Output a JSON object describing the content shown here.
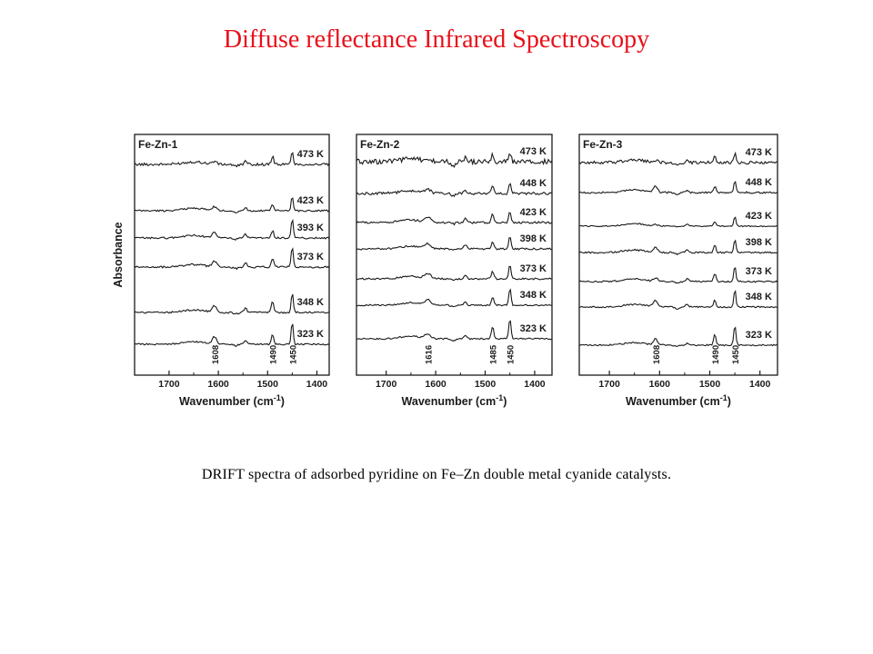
{
  "slide": {
    "title": "Diffuse reflectance Infrared Spectroscopy",
    "caption": "DRIFT spectra of adsorbed pyridine on Fe–Zn double metal cyanide catalysts."
  },
  "colors": {
    "title": "#e8101a",
    "line": "#1a1a1a"
  },
  "chart_data": [
    {
      "type": "line",
      "title": "Fe-Zn-1",
      "xlabel": "Wavenumber (cm-1)",
      "xlabel_main": "Wavenumber (cm",
      "xlabel_sup": "-1",
      "xlabel_end": ")",
      "ylabel": "Absorbance",
      "xlim": [
        1770,
        1375
      ],
      "x_inverted": true,
      "xticks": [
        1700,
        1600,
        1500,
        1400
      ],
      "grid": false,
      "peak_labels": [
        {
          "text": "1608",
          "x": 1608
        },
        {
          "text": "1490",
          "x": 1490
        },
        {
          "text": "1450",
          "x": 1450
        }
      ],
      "series": [
        {
          "name": "473 K",
          "features": [
            [
              1608,
              0.4,
              6
            ],
            [
              1490,
              1.1,
              3.5
            ],
            [
              1450,
              1.9,
              3
            ],
            [
              1545,
              0.4,
              4
            ]
          ],
          "noise": 0.18,
          "dip": -0.3
        },
        {
          "name": "423 K",
          "features": [
            [
              1608,
              0.5,
              6
            ],
            [
              1490,
              0.9,
              3.5
            ],
            [
              1450,
              2.0,
              3
            ],
            [
              1545,
              0.4,
              4
            ]
          ],
          "noise": 0.12,
          "dip": -0.2
        },
        {
          "name": "393 K",
          "features": [
            [
              1608,
              0.7,
              6
            ],
            [
              1490,
              1.0,
              3.5
            ],
            [
              1450,
              2.6,
              3
            ],
            [
              1545,
              0.5,
              4
            ]
          ],
          "noise": 0.12,
          "dip": -0.2
        },
        {
          "name": "373 K",
          "features": [
            [
              1608,
              0.8,
              6
            ],
            [
              1490,
              1.1,
              3.5
            ],
            [
              1450,
              2.8,
              3
            ],
            [
              1545,
              0.6,
              4
            ]
          ],
          "noise": 0.12,
          "dip": -0.2
        },
        {
          "name": "348 K",
          "features": [
            [
              1608,
              0.9,
              6
            ],
            [
              1490,
              1.5,
              3.5
            ],
            [
              1450,
              2.7,
              3
            ],
            [
              1545,
              0.6,
              4
            ]
          ],
          "noise": 0.12,
          "dip": -0.2
        },
        {
          "name": "323 K",
          "features": [
            [
              1608,
              1.0,
              6
            ],
            [
              1490,
              1.4,
              3.5
            ],
            [
              1450,
              3.0,
              3
            ],
            [
              1545,
              0.5,
              4
            ]
          ],
          "noise": 0.1,
          "dip": -0.2
        }
      ]
    },
    {
      "type": "line",
      "title": "Fe-Zn-2",
      "xlabel": "Wavenumber (cm-1)",
      "xlabel_main": "Wavenumber (cm",
      "xlabel_sup": "-1",
      "xlabel_end": ")",
      "ylabel": "",
      "xlim": [
        1760,
        1365
      ],
      "x_inverted": true,
      "xticks": [
        1700,
        1600,
        1500,
        1400
      ],
      "grid": false,
      "peak_labels": [
        {
          "text": "1616",
          "x": 1616
        },
        {
          "text": "1485",
          "x": 1485
        },
        {
          "text": "1450",
          "x": 1450
        }
      ],
      "series": [
        {
          "name": "473 K",
          "features": [
            [
              1616,
              0.3,
              8
            ],
            [
              1485,
              0.9,
              3.5
            ],
            [
              1450,
              1.4,
              3
            ],
            [
              1540,
              0.5,
              4
            ]
          ],
          "noise": 0.35,
          "dip": -0.7
        },
        {
          "name": "448 K",
          "features": [
            [
              1616,
              0.5,
              8
            ],
            [
              1485,
              1.0,
              3.5
            ],
            [
              1450,
              1.6,
              3
            ],
            [
              1540,
              0.5,
              4
            ]
          ],
          "noise": 0.18,
          "dip": -0.3
        },
        {
          "name": "423 K",
          "features": [
            [
              1616,
              0.7,
              8
            ],
            [
              1485,
              1.1,
              3.5
            ],
            [
              1450,
              1.6,
              3
            ],
            [
              1540,
              0.6,
              4
            ]
          ],
          "noise": 0.14,
          "dip": -0.2
        },
        {
          "name": "398 K",
          "features": [
            [
              1616,
              0.6,
              8
            ],
            [
              1485,
              1.0,
              3.5
            ],
            [
              1450,
              1.8,
              3
            ],
            [
              1540,
              0.6,
              4
            ]
          ],
          "noise": 0.12,
          "dip": -0.2
        },
        {
          "name": "373 K",
          "features": [
            [
              1616,
              0.7,
              8
            ],
            [
              1485,
              1.0,
              3.5
            ],
            [
              1450,
              2.0,
              3
            ],
            [
              1540,
              0.5,
              4
            ]
          ],
          "noise": 0.12,
          "dip": -0.2
        },
        {
          "name": "348 K",
          "features": [
            [
              1616,
              0.7,
              8
            ],
            [
              1485,
              1.1,
              3.5
            ],
            [
              1450,
              2.4,
              3
            ],
            [
              1540,
              0.4,
              4
            ]
          ],
          "noise": 0.1,
          "dip": -0.2
        },
        {
          "name": "323 K",
          "features": [
            [
              1616,
              0.6,
              8
            ],
            [
              1485,
              1.6,
              3.5
            ],
            [
              1450,
              2.8,
              3
            ],
            [
              1540,
              0.4,
              4
            ]
          ],
          "noise": 0.1,
          "dip": -0.3
        }
      ]
    },
    {
      "type": "line",
      "title": "Fe-Zn-3",
      "xlabel": "Wavenumber (cm-1)",
      "xlabel_main": "Wavenumber (cm",
      "xlabel_sup": "-1",
      "xlabel_end": ")",
      "ylabel": "",
      "xlim": [
        1760,
        1365
      ],
      "x_inverted": true,
      "xticks": [
        1700,
        1600,
        1500,
        1400
      ],
      "grid": false,
      "peak_labels": [
        {
          "text": "1608",
          "x": 1608
        },
        {
          "text": "1490",
          "x": 1490
        },
        {
          "text": "1450",
          "x": 1450
        }
      ],
      "series": [
        {
          "name": "473 K",
          "features": [
            [
              1608,
              0.3,
              6
            ],
            [
              1490,
              0.8,
              3.5
            ],
            [
              1450,
              1.3,
              3
            ],
            [
              1545,
              0.5,
              4
            ]
          ],
          "noise": 0.2,
          "dip": -0.3
        },
        {
          "name": "448 K",
          "features": [
            [
              1608,
              0.8,
              6
            ],
            [
              1490,
              0.8,
              3.5
            ],
            [
              1450,
              1.6,
              3
            ],
            [
              1545,
              0.4,
              4
            ]
          ],
          "noise": 0.12,
          "dip": -0.2
        },
        {
          "name": "423 K",
          "features": [
            [
              1608,
              0.2,
              6
            ],
            [
              1490,
              0.7,
              3.5
            ],
            [
              1450,
              1.4,
              3
            ],
            [
              1545,
              0.3,
              4
            ]
          ],
          "noise": 0.08,
          "dip": -0.1
        },
        {
          "name": "398 K",
          "features": [
            [
              1608,
              0.6,
              6
            ],
            [
              1490,
              1.0,
              3.5
            ],
            [
              1450,
              1.8,
              3
            ],
            [
              1545,
              0.5,
              4
            ]
          ],
          "noise": 0.12,
          "dip": -0.2
        },
        {
          "name": "373 K",
          "features": [
            [
              1608,
              0.5,
              6
            ],
            [
              1490,
              1.1,
              3.5
            ],
            [
              1450,
              2.2,
              3
            ],
            [
              1545,
              0.4,
              4
            ]
          ],
          "noise": 0.1,
          "dip": -0.2
        },
        {
          "name": "348 K",
          "features": [
            [
              1608,
              0.9,
              6
            ],
            [
              1490,
              0.9,
              3.5
            ],
            [
              1450,
              2.4,
              3
            ],
            [
              1545,
              0.4,
              4
            ]
          ],
          "noise": 0.1,
          "dip": -0.2
        },
        {
          "name": "323 K",
          "features": [
            [
              1608,
              0.8,
              6
            ],
            [
              1490,
              1.5,
              3.5
            ],
            [
              1450,
              2.8,
              3
            ],
            [
              1545,
              0.3,
              4
            ]
          ],
          "noise": 0.1,
          "dip": -0.2
        }
      ]
    }
  ]
}
